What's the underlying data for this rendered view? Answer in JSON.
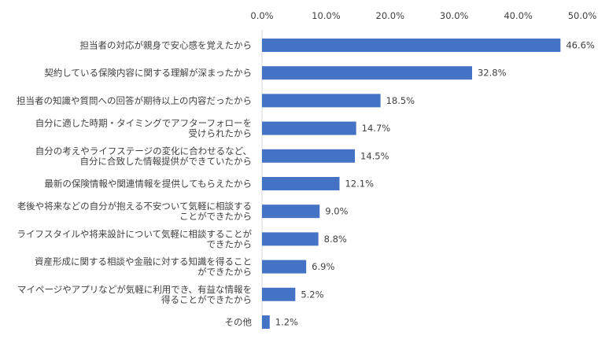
{
  "chart_data": {
    "type": "bar",
    "orientation": "horizontal",
    "categories": [
      [
        "担当者の対応が親身で安心感を覚えたから"
      ],
      [
        "契約している保険内容に関する理解が深まったから"
      ],
      [
        "担当者の知識や質問への回答が期待以上の内容だったから"
      ],
      [
        "自分に適した時期・タイミングでアフターフォローを",
        "受けられたから"
      ],
      [
        "自分の考えやライフステージの変化に合わせるなど、",
        "自分に合致した情報提供ができていたから"
      ],
      [
        "最新の保険情報や関連情報を提供してもらえたから"
      ],
      [
        "老後や将来などの自分が抱える不安ついて気軽に相談する",
        "ことができたから"
      ],
      [
        "ライフスタイルや将来設計について気軽に相談することが",
        "できたから"
      ],
      [
        "資産形成に関する相談や金融に対する知識を得ること",
        "ができたから"
      ],
      [
        "マイページやアプリなどが気軽に利用でき、有益な情報を",
        "得ることができたから"
      ],
      [
        "その他"
      ]
    ],
    "values": [
      46.6,
      32.8,
      18.5,
      14.7,
      14.5,
      12.1,
      9.0,
      8.8,
      6.9,
      5.2,
      1.2
    ],
    "value_labels": [
      "46.6%",
      "32.8%",
      "18.5%",
      "14.7%",
      "14.5%",
      "12.1%",
      "9.0%",
      "8.8%",
      "6.9%",
      "5.2%",
      "1.2%"
    ],
    "xlim": [
      0,
      50
    ],
    "xticks": [
      0,
      10,
      20,
      30,
      40,
      50
    ],
    "xtick_labels": [
      "0.0%",
      "10.0%",
      "20.0%",
      "30.0%",
      "40.0%",
      "50.0%"
    ],
    "axis_position": "top",
    "grid": false,
    "legend": false,
    "bar_color": "#4472c4"
  }
}
